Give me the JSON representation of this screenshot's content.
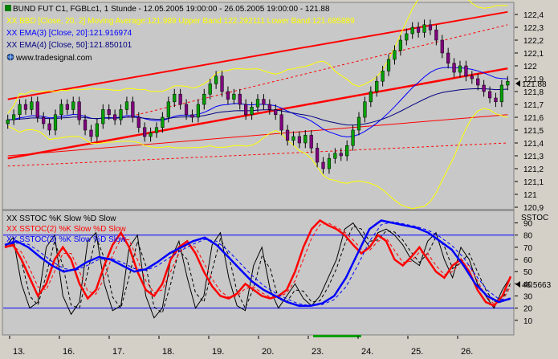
{
  "palette": {
    "background": "#d4d0c8",
    "plot_bg": "#c8c8c8",
    "price_up": "#00a000",
    "price_down": "#800080",
    "channel": "#ff0000",
    "bollinger": "#ffff00",
    "ema3": "#0000ff",
    "ema4": "#000080",
    "stoch_black": "#000000",
    "stoch_red": "#ff0000",
    "stoch_blue": "#0000ff"
  },
  "legend": {
    "line1": "BUND FUT C1, FGBLc1, 1 Stunde - 12.05.2005 19:00:00 - 26.05.2005 19:00:00 - 121.88",
    "line2": "XX BBD [Close, 20, 2] Moving Average:121.989 Upper Band:122.292111 Lower Band:121.685889",
    "line3": "XX EMA(3) [Close, 20]:121.916974",
    "line4": "XX EMA(4) [Close, 50]:121.850101",
    "line5": "www.tradesignal.com",
    "globe_icon": "globe-icon"
  },
  "stoch_legend": {
    "line1": "XX SSTOC %K Slow %D Slow",
    "line2": "XX SSTOC(2) %K Slow %D Slow",
    "line3": "XX SSTOC(3) %K Slow %D Slow",
    "axis_title": "SSTOC"
  },
  "last_price": "121.88",
  "last_stoch": "46.5663",
  "chart_data": [
    {
      "type": "candlestick",
      "title": "BUND FUT C1, FGBLc1, 1 Stunde",
      "ylim": [
        120.9,
        122.45
      ],
      "yticks": [
        "122,4",
        "122,3",
        "122,2",
        "122,1",
        "122",
        "121,9",
        "121,8",
        "121,7",
        "121,6",
        "121,5",
        "121,4",
        "121,3",
        "121,2",
        "121,1",
        "121",
        "120,9"
      ],
      "ytick_values": [
        122.4,
        122.3,
        122.2,
        122.1,
        122.0,
        121.9,
        121.8,
        121.7,
        121.6,
        121.5,
        121.4,
        121.3,
        121.2,
        121.1,
        121.0,
        120.9
      ],
      "x_labels": [
        "13.",
        "16.",
        "17.",
        "18.",
        "19.",
        "20.",
        "23.",
        "24.",
        "25.",
        "26."
      ],
      "close": [
        121.58,
        121.62,
        121.7,
        121.66,
        121.72,
        121.6,
        121.55,
        121.5,
        121.62,
        121.7,
        121.66,
        121.72,
        121.58,
        121.5,
        121.45,
        121.55,
        121.66,
        121.62,
        121.58,
        121.66,
        121.72,
        121.6,
        121.52,
        121.45,
        121.48,
        121.52,
        121.6,
        121.72,
        121.78,
        121.7,
        121.62,
        121.6,
        121.7,
        121.78,
        121.86,
        121.92,
        121.8,
        121.74,
        121.78,
        121.7,
        121.62,
        121.68,
        121.74,
        121.7,
        121.66,
        121.62,
        121.5,
        121.42,
        121.45,
        121.4,
        121.46,
        121.36,
        121.25,
        121.2,
        121.28,
        121.32,
        121.3,
        121.38,
        121.5,
        121.6,
        121.72,
        121.8,
        121.88,
        121.96,
        122.05,
        122.12,
        122.2,
        122.25,
        122.3,
        122.26,
        122.32,
        122.28,
        122.2,
        122.1,
        122.02,
        121.95,
        122.0,
        121.92,
        121.9,
        121.85,
        121.8,
        121.75,
        121.72,
        121.85,
        121.88
      ],
      "channel_upper": [
        [
          0,
          121.74
        ],
        [
          84,
          122.42
        ]
      ],
      "channel_mid": [
        [
          0,
          121.28
        ],
        [
          84,
          121.98
        ]
      ],
      "channel_lower_dashed": [
        [
          0,
          121.22
        ],
        [
          84,
          121.4
        ]
      ],
      "channel_upper_dashed": [
        [
          20,
          121.6
        ],
        [
          84,
          122.32
        ]
      ],
      "channel_mid_thin": [
        [
          0,
          121.3
        ],
        [
          84,
          121.62
        ]
      ],
      "bb_mid_label": "121.989",
      "bb_upper_label": "122.292111",
      "bb_lower_label": "121.685889",
      "ema20_label": "121.916974",
      "ema50_label": "121.850101"
    },
    {
      "type": "line",
      "title": "SSTOC",
      "ylim": [
        0,
        95
      ],
      "yticks": [
        "90",
        "80",
        "70",
        "60",
        "50",
        "40",
        "30",
        "20",
        "10"
      ],
      "ytick_values": [
        90,
        80,
        70,
        60,
        50,
        40,
        30,
        20,
        10
      ],
      "hlines": [
        80,
        20
      ],
      "series": [
        {
          "name": "XX SSTOC %K Slow %D Slow",
          "values": [
            70,
            78,
            40,
            20,
            25,
            70,
            80,
            30,
            15,
            25,
            75,
            82,
            40,
            18,
            22,
            70,
            80,
            30,
            12,
            20,
            60,
            75,
            45,
            20,
            30,
            72,
            82,
            45,
            22,
            18,
            55,
            70,
            35,
            20,
            30,
            40,
            28,
            22,
            30,
            45,
            60,
            85,
            90,
            80,
            70,
            82,
            85,
            80,
            72,
            60,
            55,
            75,
            82,
            60,
            45,
            70,
            60,
            40,
            30,
            20,
            35,
            46
          ]
        },
        {
          "name": "XX SSTOC(2) %K Slow %D Slow",
          "values": [
            70,
            72,
            60,
            45,
            30,
            40,
            60,
            70,
            60,
            40,
            28,
            35,
            55,
            72,
            82,
            70,
            50,
            35,
            30,
            40,
            60,
            70,
            75,
            65,
            50,
            38,
            30,
            28,
            32,
            40,
            35,
            30,
            28,
            30,
            35,
            50,
            70,
            85,
            92,
            88,
            85,
            80,
            72,
            65,
            70,
            80,
            75,
            60,
            55,
            62,
            70,
            60,
            50,
            45,
            55,
            60,
            50,
            35,
            25,
            22,
            30,
            46
          ]
        },
        {
          "name": "XX SSTOC(3) %K Slow %D Slow",
          "values": [
            72,
            75,
            70,
            62,
            55,
            50,
            52,
            58,
            62,
            60,
            55,
            50,
            52,
            58,
            65,
            70,
            75,
            78,
            72,
            62,
            52,
            42,
            35,
            30,
            25,
            22,
            22,
            24,
            30,
            45,
            65,
            85,
            92,
            90,
            88,
            86,
            82,
            75,
            68,
            55,
            40,
            30,
            25,
            28
          ]
        }
      ]
    }
  ]
}
